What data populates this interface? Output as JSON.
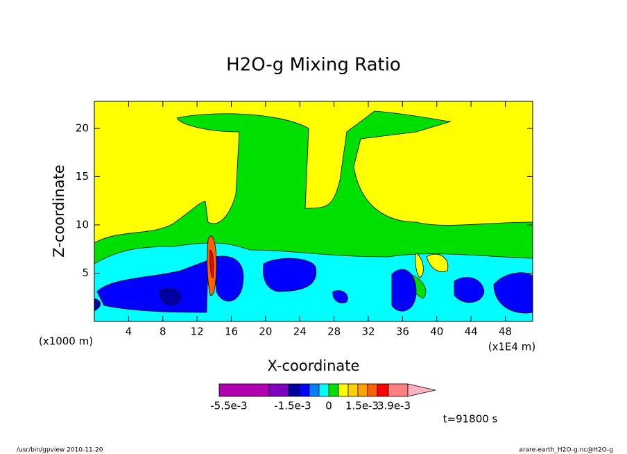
{
  "chart_data": {
    "type": "contour",
    "title": "H2O-g Mixing Ratio",
    "x_label": "X-coordinate",
    "y_label": "Z-coordinate",
    "x_unit_left": "(x1000 m)",
    "x_unit_right": "(x1E4 m)",
    "xlim": [
      0,
      51.2
    ],
    "ylim": [
      0,
      22.8
    ],
    "xticks": [
      4,
      8,
      12,
      16,
      20,
      24,
      28,
      32,
      36,
      40,
      44,
      48
    ],
    "yticks": [
      5,
      10,
      15,
      20
    ],
    "colorbar_colors": [
      "#b000b0",
      "#8000c0",
      "#0000a0",
      "#0000ff",
      "#0080ff",
      "#00ffff",
      "#00e000",
      "#ffff00",
      "#ffd000",
      "#ffa000",
      "#ff6000",
      "#ff0000",
      "#ff8080",
      "#ffb0c0"
    ],
    "colorbar_ticks": [
      {
        "value": -0.0055,
        "label": "-5.5e-3"
      },
      {
        "value": -0.0015,
        "label": "-1.5e-3"
      },
      0,
      {
        "value": 0.0015,
        "label": "1.5e-3"
      },
      {
        "value": 0.0039,
        "label": "3.9e-3"
      }
    ],
    "time_label": "t=91800 s",
    "footer_left": "/usr/bin/gpview  2010-11-20",
    "footer_right": "arare-earth_H2O-g.nc@H2O-g"
  }
}
